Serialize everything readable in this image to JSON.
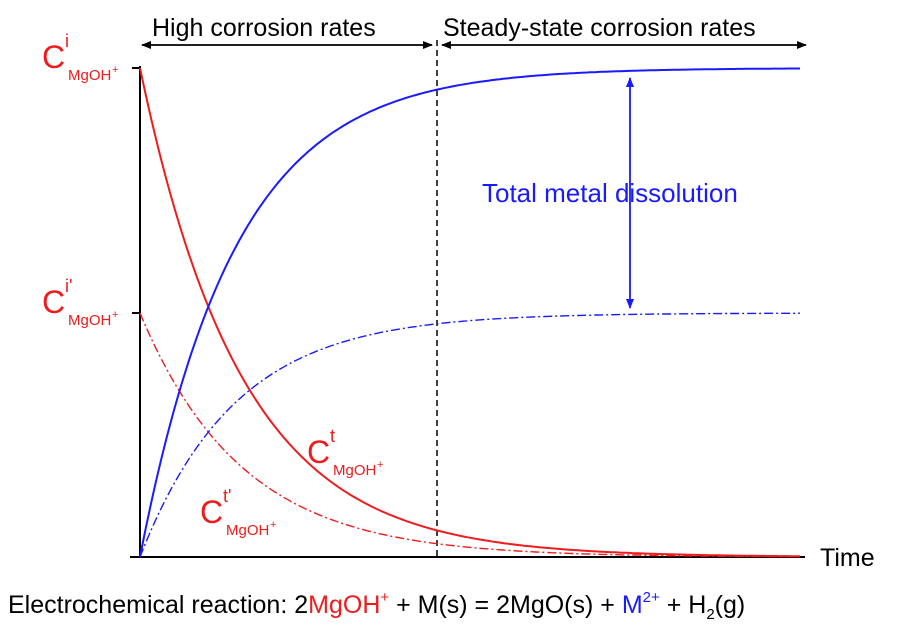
{
  "header_labels": {
    "high_rates": "High corrosion rates",
    "steady_rates": "Steady-state corrosion rates"
  },
  "annotation": "Total metal dissolution",
  "x_axis_label": "Time",
  "concentration_labels": [
    {
      "base": "C",
      "sup": "i",
      "sub": "MgOH",
      "sub_sup": "+"
    },
    {
      "base": "C",
      "sup": "i'",
      "sub": "MgOH",
      "sub_sup": "+"
    },
    {
      "base": "C",
      "sup": "t",
      "sub": "MgOH",
      "sub_sup": "+"
    },
    {
      "base": "C",
      "sup": "t'",
      "sub": "MgOH",
      "sub_sup": "+"
    }
  ],
  "equation": [
    "Electrochemical reaction: 2",
    "MgOH",
    "+",
    " + M(s) = 2MgO(s) + ",
    "M",
    "2+",
    " + H",
    "2",
    "(g)"
  ]
}
